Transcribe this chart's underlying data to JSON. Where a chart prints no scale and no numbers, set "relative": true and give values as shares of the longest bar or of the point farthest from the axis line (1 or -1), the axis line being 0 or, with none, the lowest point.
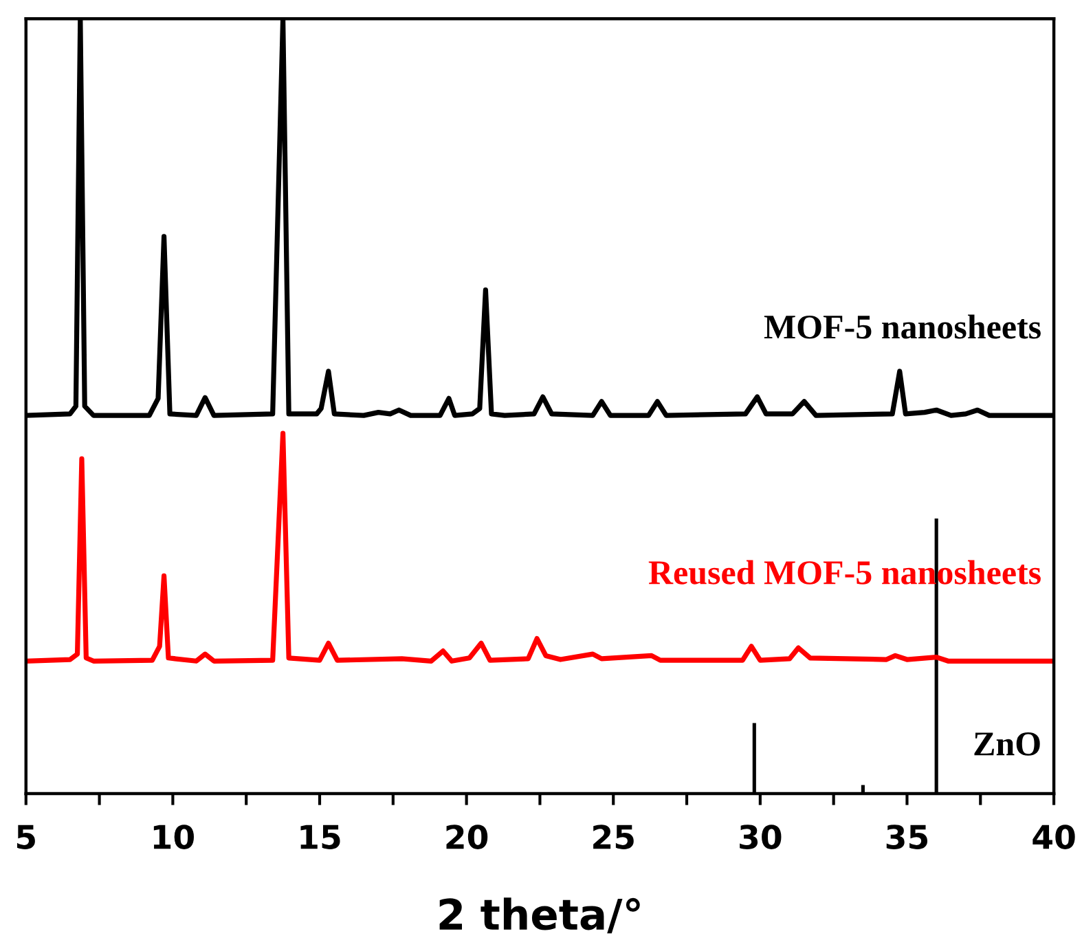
{
  "chart_data": {
    "type": "line",
    "relative": true,
    "xlabel": "2 theta/°",
    "xlim": [
      5,
      40
    ],
    "xticks": [
      5,
      {
        "value": 7.5,
        "label": null
      },
      10,
      {
        "value": 12.5,
        "label": null
      },
      15,
      {
        "value": 17.5,
        "label": null
      },
      20,
      {
        "value": 22.5,
        "label": null
      },
      25,
      {
        "value": 27.5,
        "label": null
      },
      30,
      {
        "value": 32.5,
        "label": null
      },
      35,
      {
        "value": 37.5,
        "label": null
      },
      40
    ],
    "grid": false,
    "legend": false,
    "series": [
      {
        "name": "MOF-5 nanosheets",
        "color": "#000000",
        "x": [
          5,
          6.5,
          6.7,
          6.85,
          7.0,
          7.3,
          9.2,
          9.5,
          9.7,
          9.9,
          10.8,
          11.1,
          11.4,
          13.4,
          13.75,
          13.95,
          14.9,
          15.05,
          15.3,
          15.5,
          16.5,
          17.0,
          17.4,
          17.7,
          18.1,
          19.1,
          19.4,
          19.6,
          20.2,
          20.45,
          20.65,
          20.85,
          21.3,
          22.3,
          22.6,
          22.9,
          24.3,
          24.6,
          24.9,
          26.2,
          26.5,
          26.8,
          29.5,
          29.9,
          30.2,
          31.1,
          31.5,
          31.9,
          34.5,
          34.75,
          34.95,
          35.6,
          36.0,
          36.5,
          37.0,
          37.4,
          37.8,
          40
        ],
        "values": [
          0.488,
          0.49,
          0.5,
          1.0,
          0.5,
          0.488,
          0.488,
          0.51,
          0.719,
          0.49,
          0.488,
          0.511,
          0.488,
          0.49,
          1.0,
          0.49,
          0.49,
          0.497,
          0.545,
          0.49,
          0.488,
          0.492,
          0.49,
          0.495,
          0.488,
          0.488,
          0.51,
          0.488,
          0.49,
          0.497,
          0.65,
          0.49,
          0.488,
          0.49,
          0.512,
          0.49,
          0.488,
          0.506,
          0.488,
          0.488,
          0.506,
          0.488,
          0.49,
          0.512,
          0.49,
          0.49,
          0.506,
          0.488,
          0.49,
          0.545,
          0.49,
          0.492,
          0.495,
          0.488,
          0.49,
          0.495,
          0.488,
          0.488
        ]
      },
      {
        "name": "Reused MOF-5 nanosheets",
        "color": "#ff0000",
        "x": [
          5,
          6.5,
          6.75,
          6.9,
          7.05,
          7.3,
          9.3,
          9.55,
          9.7,
          9.85,
          10.8,
          11.1,
          11.4,
          13.4,
          13.75,
          13.95,
          15.0,
          15.3,
          15.6,
          17.8,
          18.8,
          19.2,
          19.5,
          20.1,
          20.5,
          20.8,
          22.1,
          22.4,
          22.7,
          23.2,
          24.3,
          24.6,
          26.3,
          26.6,
          29.4,
          29.7,
          30.0,
          31.0,
          31.3,
          31.7,
          34.3,
          34.6,
          35.0,
          36.0,
          36.4,
          40
        ],
        "values": [
          0.171,
          0.173,
          0.18,
          0.432,
          0.175,
          0.171,
          0.172,
          0.19,
          0.281,
          0.175,
          0.171,
          0.18,
          0.171,
          0.172,
          0.465,
          0.175,
          0.172,
          0.194,
          0.172,
          0.174,
          0.171,
          0.184,
          0.171,
          0.175,
          0.194,
          0.172,
          0.174,
          0.2,
          0.178,
          0.173,
          0.18,
          0.174,
          0.178,
          0.172,
          0.172,
          0.19,
          0.172,
          0.174,
          0.188,
          0.175,
          0.173,
          0.178,
          0.173,
          0.176,
          0.171,
          0.171
        ]
      },
      {
        "name": "ZnO",
        "color": "#000000",
        "type": "bar",
        "x": [
          29.8,
          33.5,
          36.0
        ],
        "values": [
          0.091,
          0.011,
          0.355
        ]
      }
    ]
  }
}
